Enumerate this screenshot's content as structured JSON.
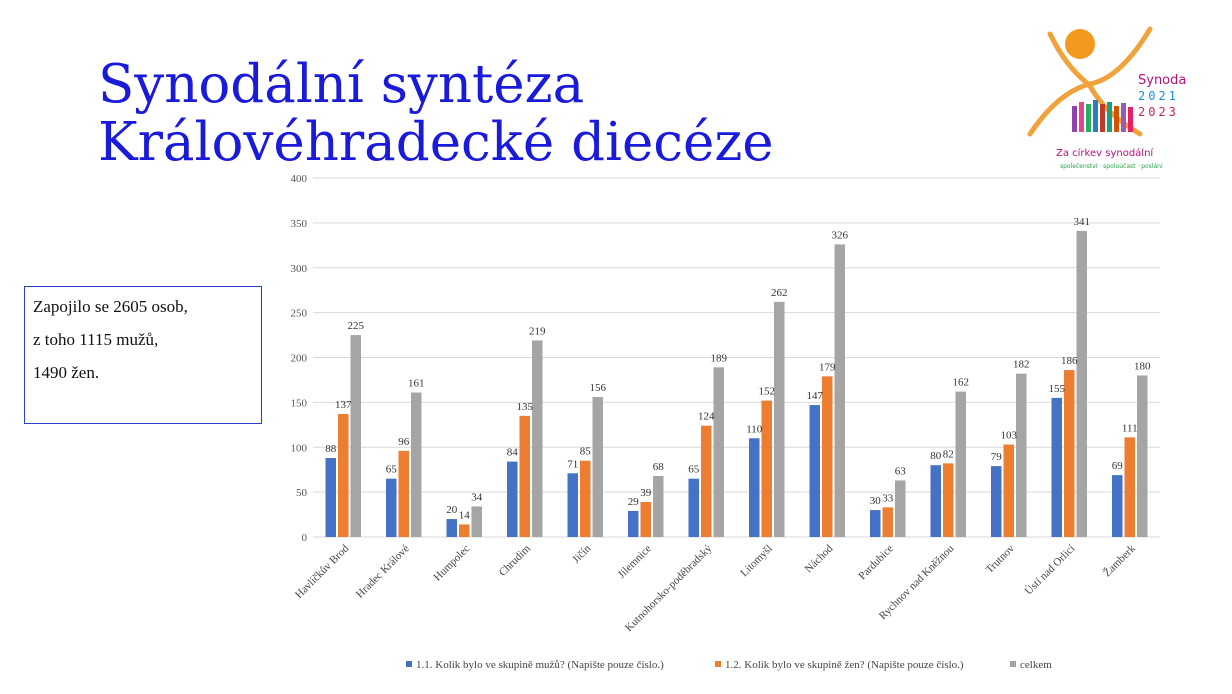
{
  "slide": {
    "title_line1": "Synodální syntéza",
    "title_line2": "Královéhradecké diecéze",
    "info_lines": [
      "Zapojilo se 2605 osob,",
      " z toho 1115 mužů,",
      " 1490 žen."
    ]
  },
  "logo": {
    "line1": "Synoda",
    "line2": "2021",
    "line3": "2023",
    "tagline": "Za církev synodální",
    "subtagline": "společenství · spoluúčast · poslání"
  },
  "chart_data": {
    "type": "bar",
    "categories": [
      "Havlíčkův Brod",
      "Hradec Králové",
      "Humpolec",
      "Chrudim",
      "Jičín",
      "Jilemnice",
      "Kutnohorsko-poděbradský",
      "Litomyšl",
      "Náchod",
      "Pardubice",
      "Rychnov nad Kněžnou",
      "Trutnov",
      "Ústí nad Orlicí",
      "Žamberk"
    ],
    "series": [
      {
        "name": "1.1. Kolik bylo ve skupině mužů? (Napište pouze číslo.)",
        "color": "#4472c4",
        "values": [
          88,
          65,
          20,
          84,
          71,
          29,
          65,
          110,
          147,
          30,
          80,
          79,
          155,
          69
        ]
      },
      {
        "name": "1.2. Kolik bylo ve skupině žen? (Napište pouze číslo.)",
        "color": "#ed7d31",
        "values": [
          137,
          96,
          14,
          135,
          85,
          39,
          124,
          152,
          179,
          33,
          82,
          103,
          186,
          111
        ]
      },
      {
        "name": "celkem",
        "color": "#a5a5a5",
        "values": [
          225,
          161,
          34,
          219,
          156,
          68,
          189,
          262,
          326,
          63,
          162,
          182,
          341,
          180
        ]
      }
    ],
    "ylim": [
      0,
      400
    ],
    "yticks": [
      0,
      50,
      100,
      150,
      200,
      250,
      300,
      350,
      400
    ],
    "grid": true,
    "legend": "bottom"
  }
}
